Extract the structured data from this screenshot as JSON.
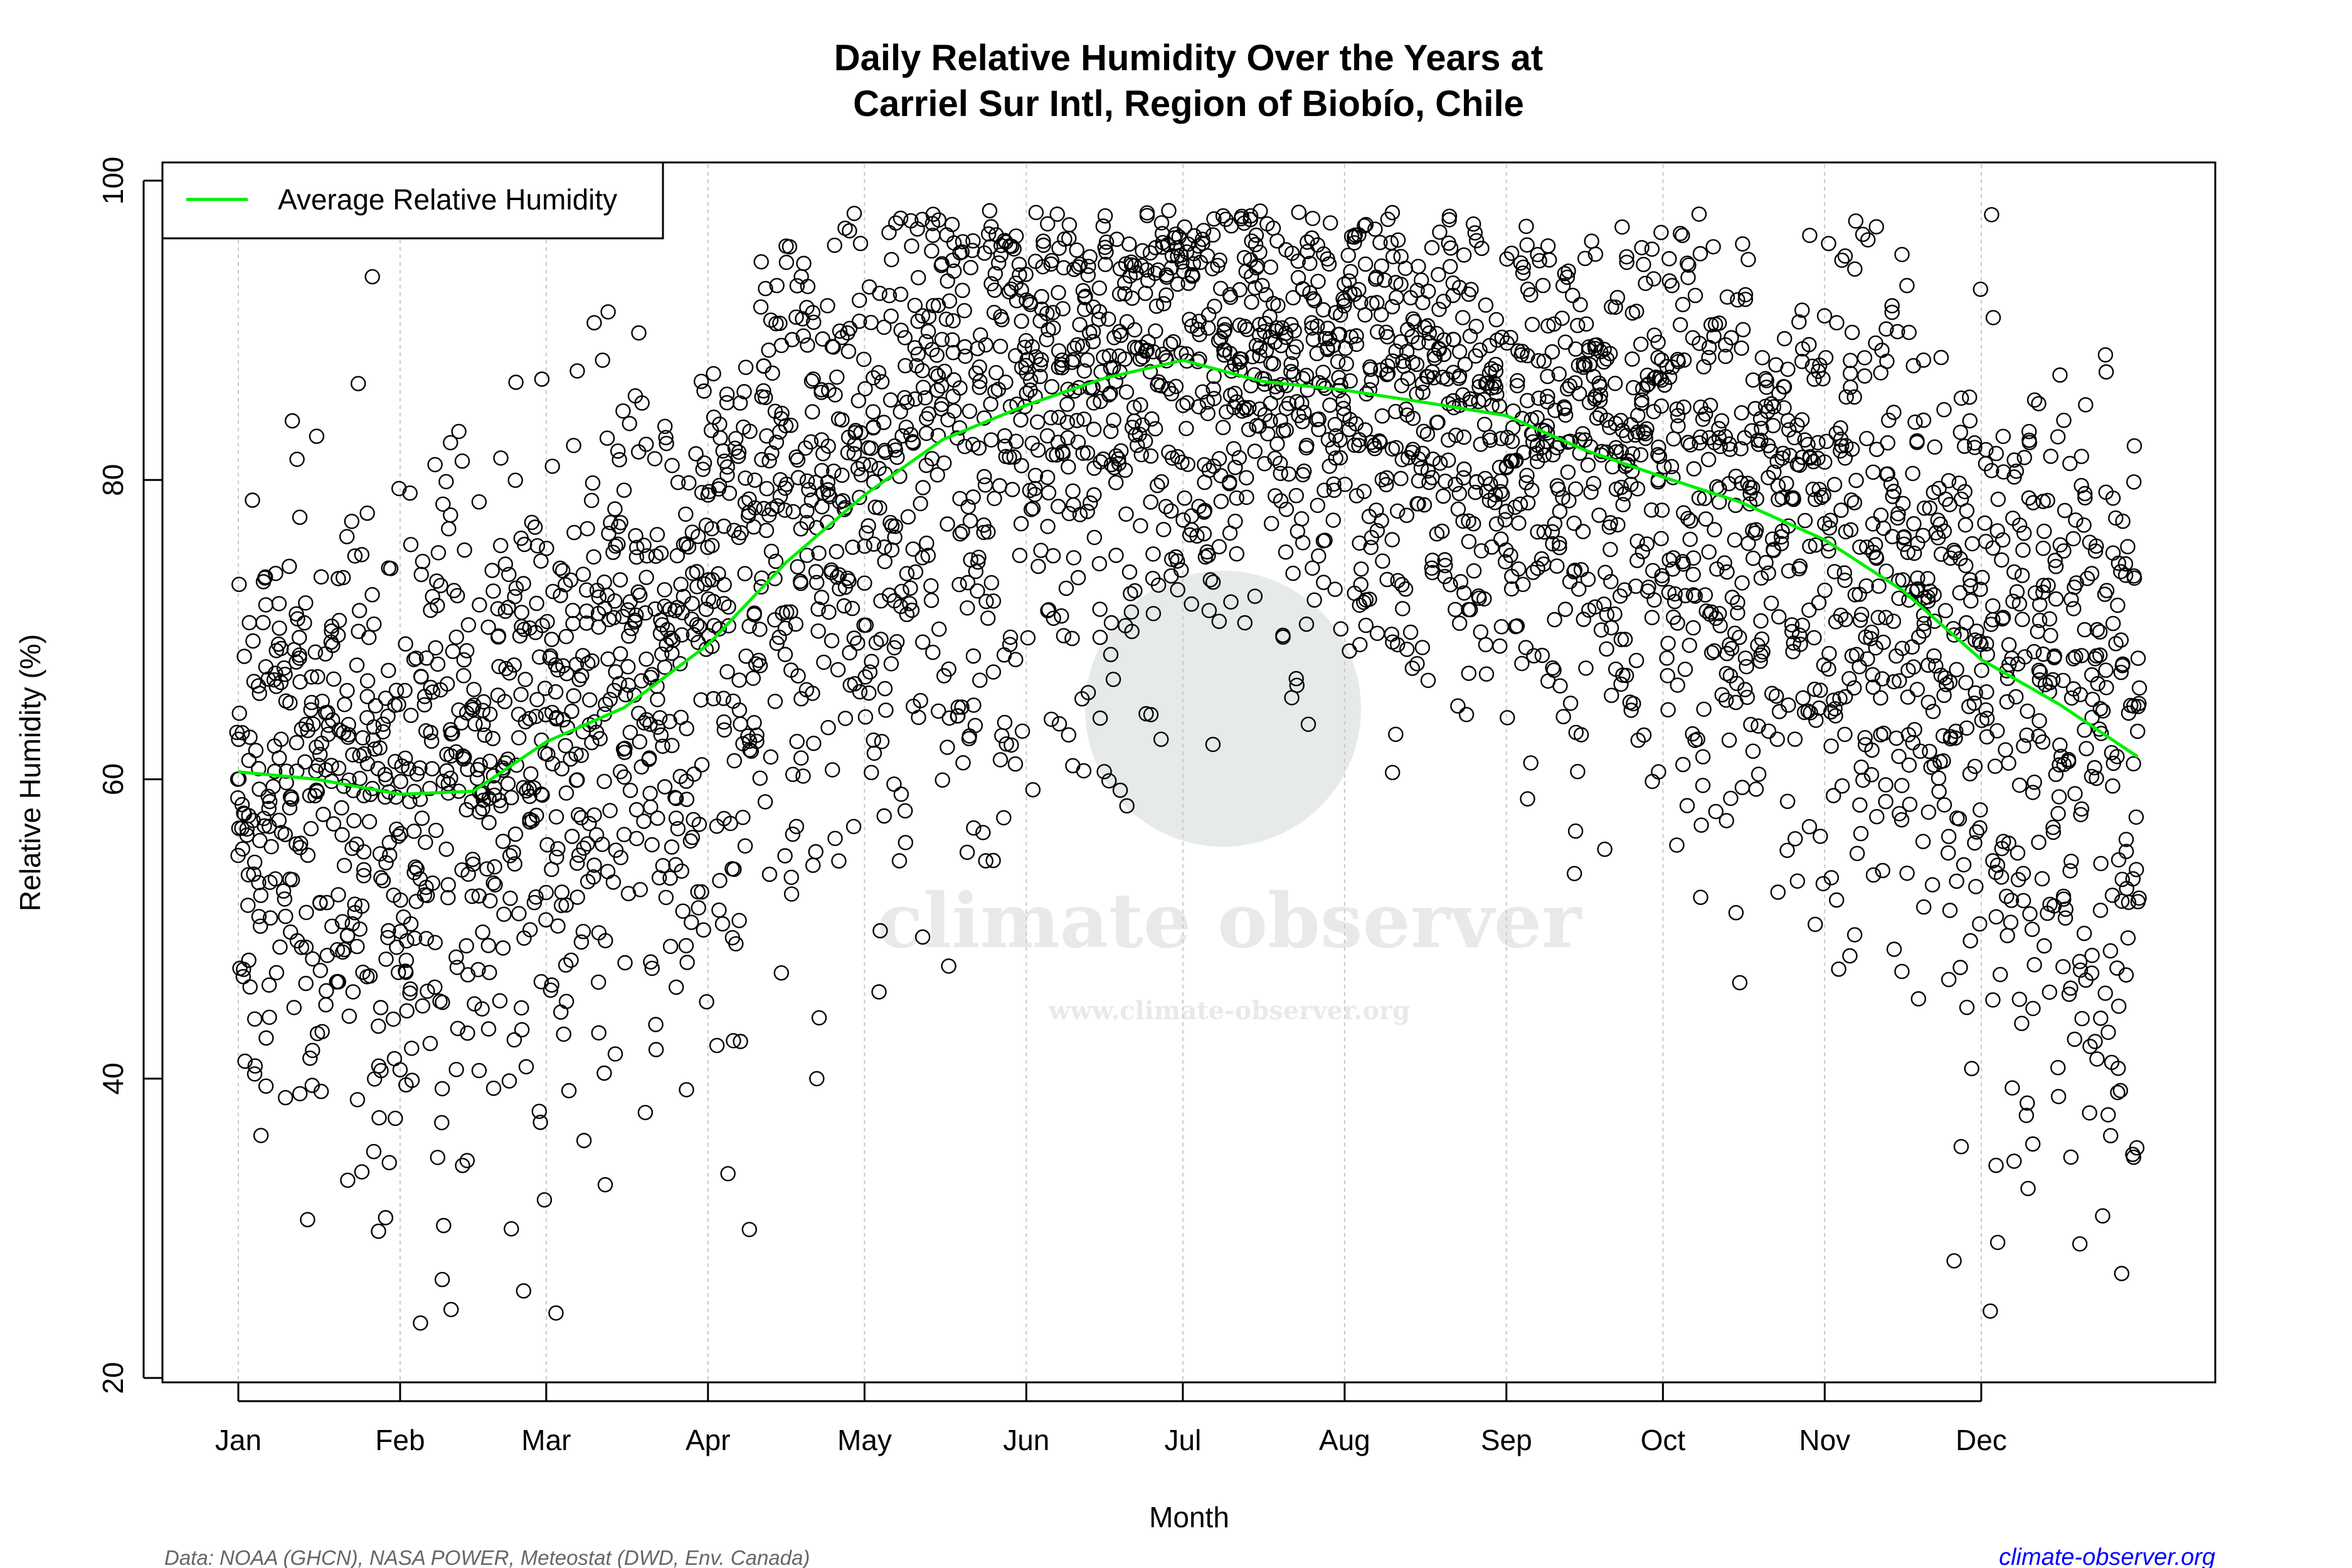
{
  "chart_data": {
    "type": "scatter",
    "title": [
      "Daily Relative Humidity Over the Years at",
      "Carriel Sur Intl, Region of Biobío, Chile"
    ],
    "xlabel": "Month",
    "ylabel": "Relative Humidity  (%)",
    "ylim": [
      20,
      100
    ],
    "yticks": [
      "20",
      "40",
      "60",
      "80",
      "100"
    ],
    "xticks": [
      "Jan",
      "Feb",
      "Mar",
      "Apr",
      "May",
      "Jun",
      "Jul",
      "Aug",
      "Sep",
      "Oct",
      "Nov",
      "Dec"
    ],
    "xtick_days": [
      1,
      32,
      60,
      91,
      121,
      152,
      182,
      213,
      244,
      274,
      305,
      335
    ],
    "grid": "vertical dotted at month starts",
    "legend": {
      "label": "Average Relative Humidity",
      "placement": "top-left",
      "color": "#00ee00"
    },
    "average_line": {
      "days": [
        1,
        16,
        32,
        46,
        60,
        75,
        91,
        106,
        121,
        136,
        152,
        167,
        182,
        197,
        213,
        228,
        244,
        259,
        274,
        289,
        305,
        320,
        335,
        350,
        365
      ],
      "values": [
        60.5,
        60.0,
        59.0,
        59.2,
        62.5,
        64.8,
        69.0,
        74.5,
        79.0,
        82.7,
        85.0,
        86.8,
        88.0,
        86.6,
        86.0,
        85.2,
        84.3,
        82.0,
        80.2,
        78.5,
        76.0,
        72.6,
        68.0,
        65.0,
        61.5
      ]
    },
    "scatter": {
      "description": "daily observations across many years",
      "points_per_day": 10,
      "spread_sd_by_month": [
        9,
        10,
        10,
        11,
        10,
        8,
        7,
        7,
        8,
        8,
        10,
        11
      ],
      "max_value": 98,
      "min_observed": 22.7,
      "color": "#000000"
    }
  },
  "watermark": {
    "name": "climate observer",
    "url": "www.climate-observer.org"
  },
  "footer": {
    "source": "Data: NOAA (GHCN), NASA POWER, Meteostat (DWD, Env. Canada)",
    "site": "climate-observer.org"
  }
}
